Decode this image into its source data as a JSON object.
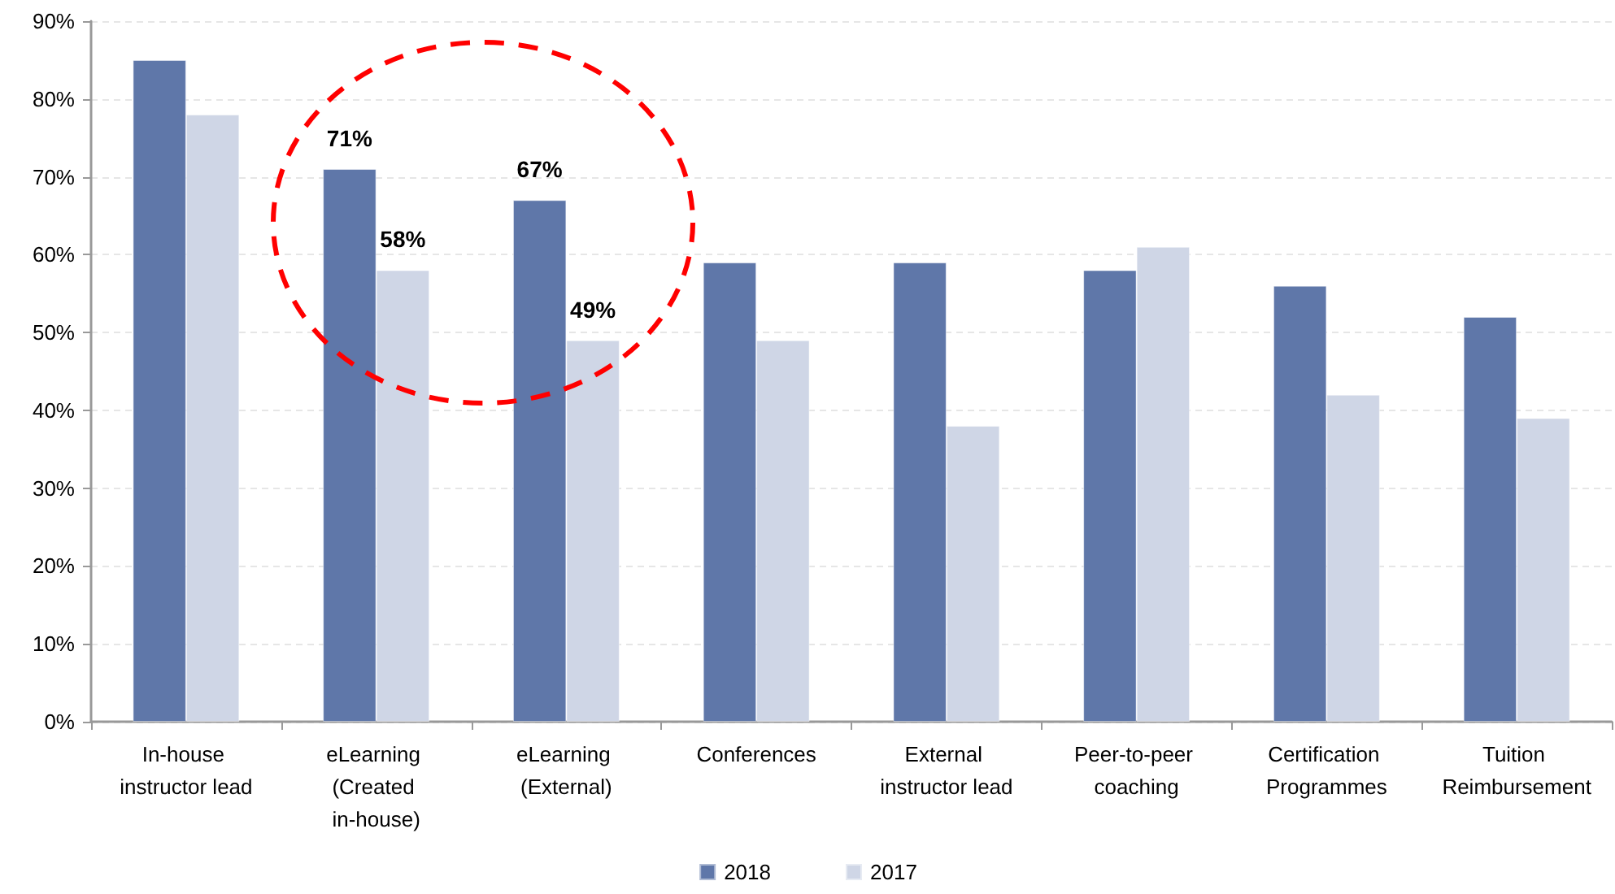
{
  "chart_data": {
    "type": "bar",
    "categories": [
      "In-house instructor lead",
      "eLearning (Created in-house)",
      "eLearning (External)",
      "Conferences",
      "External instructor lead",
      "Peer-to-peer coaching",
      "Certification Programmes",
      "Tuition Reimbursement"
    ],
    "series": [
      {
        "name": "2018",
        "color": "#5f77a9",
        "values": [
          85,
          71,
          67,
          59,
          59,
          58,
          56,
          52
        ],
        "value_labels": [
          null,
          "71%",
          "67%",
          null,
          null,
          null,
          null,
          null
        ]
      },
      {
        "name": "2017",
        "color": "#cfd6e6",
        "values": [
          78,
          58,
          49,
          49,
          38,
          61,
          42,
          39
        ],
        "value_labels": [
          null,
          "58%",
          "49%",
          null,
          null,
          null,
          null,
          null
        ]
      }
    ],
    "ylim": [
      0,
      90
    ],
    "yticks": [
      {
        "value": 0,
        "label": "0%"
      },
      {
        "value": 10,
        "label": "10%"
      },
      {
        "value": 20,
        "label": "20%"
      },
      {
        "value": 30,
        "label": "30%"
      },
      {
        "value": 40,
        "label": "40%"
      },
      {
        "value": 50,
        "label": "50%"
      },
      {
        "value": 60,
        "label": "60%"
      },
      {
        "value": 70,
        "label": "70%"
      },
      {
        "value": 80,
        "label": "80%"
      },
      {
        "value": 90,
        "label": "90%"
      }
    ],
    "grid": "y",
    "legend": "bottom"
  }
}
